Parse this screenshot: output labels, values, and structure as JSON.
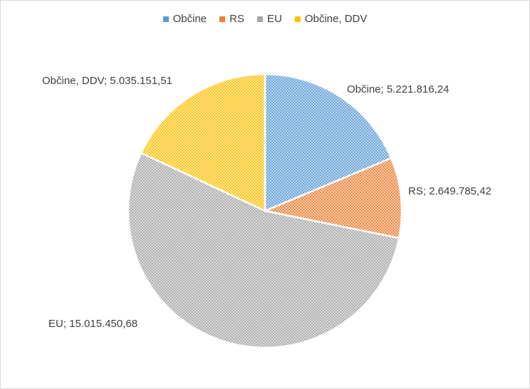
{
  "chart_data": {
    "type": "pie",
    "title": "",
    "categories": [
      "Občine",
      "RS",
      "EU",
      "Občine, DDV"
    ],
    "values": [
      5221816.24,
      2649785.42,
      15015450.68,
      5035151.51
    ],
    "data_labels": [
      "Občine; 5.221.816,24",
      "RS; 2.649.785,42",
      "EU; 15.015.450,68",
      "Občine, DDV; 5.035.151,51"
    ],
    "colors": [
      "#5b9bd5",
      "#ed7d31",
      "#a5a5a5",
      "#ffc000"
    ],
    "fill_pattern": "crosshatch",
    "legend_position": "top"
  }
}
